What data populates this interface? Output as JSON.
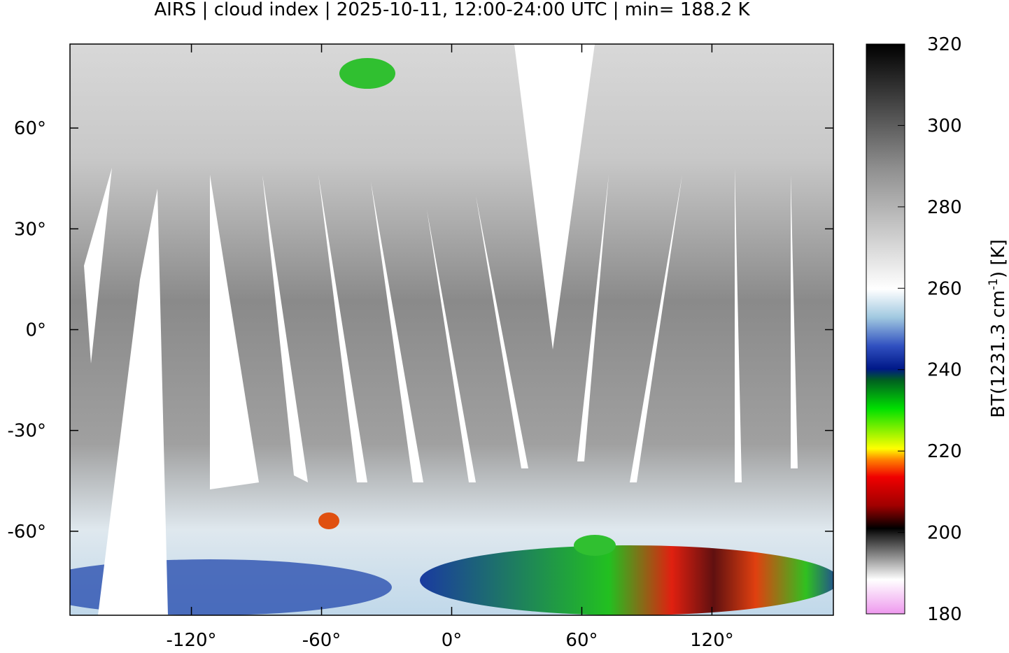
{
  "chart_data": {
    "type": "map",
    "title": "AIRS | cloud index | 2025-10-11, 12:00-24:00 UTC | min= 188.2 K",
    "xlim": [
      -176,
      176
    ],
    "ylim": [
      -85,
      85
    ],
    "xticks": [
      {
        "value": -120,
        "label": "-120°"
      },
      {
        "value": -60,
        "label": "-60°"
      },
      {
        "value": 0,
        "label": "0°"
      },
      {
        "value": 60,
        "label": "60°"
      },
      {
        "value": 120,
        "label": "120°"
      }
    ],
    "yticks": [
      {
        "value": 60,
        "label": "60°"
      },
      {
        "value": 30,
        "label": "30°"
      },
      {
        "value": 0,
        "label": "0°"
      },
      {
        "value": -30,
        "label": "-30°"
      },
      {
        "value": -60,
        "label": "-60°"
      }
    ],
    "colorbar": {
      "lim": [
        180,
        320
      ],
      "ticks": [
        180,
        200,
        220,
        240,
        260,
        280,
        300,
        320
      ],
      "label": {
        "text": "BT(1231.3 cm",
        "superscript": "-1",
        "suffix": ") [K]"
      }
    }
  }
}
